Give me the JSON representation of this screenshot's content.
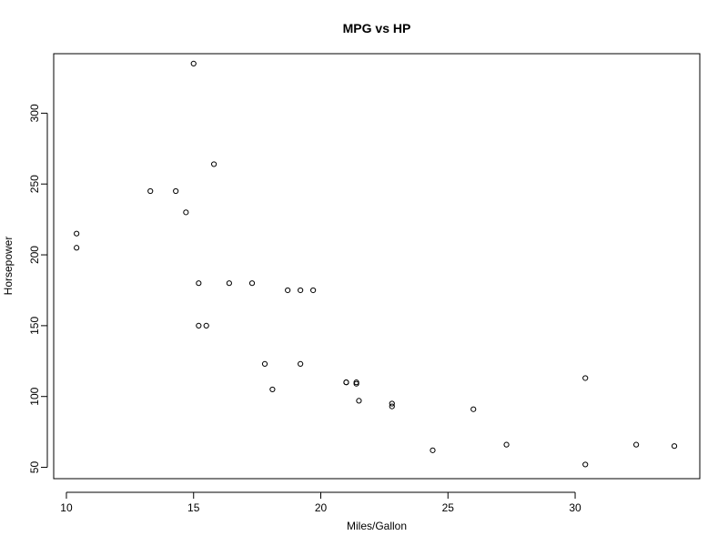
{
  "chart_data": {
    "type": "scatter",
    "title": "MPG vs HP",
    "xlabel": "Miles/Gallon",
    "ylabel": "Horsepower",
    "xlim": [
      9.5,
      34.9
    ],
    "ylim": [
      42,
      342
    ],
    "xticks": [
      10,
      15,
      20,
      25,
      30
    ],
    "yticks": [
      50,
      100,
      150,
      200,
      250,
      300
    ],
    "grid": false,
    "legend": "none",
    "marker": "open-circle",
    "points": [
      {
        "x": 21.0,
        "y": 110
      },
      {
        "x": 21.0,
        "y": 110
      },
      {
        "x": 22.8,
        "y": 93
      },
      {
        "x": 21.4,
        "y": 110
      },
      {
        "x": 18.7,
        "y": 175
      },
      {
        "x": 18.1,
        "y": 105
      },
      {
        "x": 14.3,
        "y": 245
      },
      {
        "x": 24.4,
        "y": 62
      },
      {
        "x": 22.8,
        "y": 95
      },
      {
        "x": 19.2,
        "y": 123
      },
      {
        "x": 17.8,
        "y": 123
      },
      {
        "x": 16.4,
        "y": 180
      },
      {
        "x": 17.3,
        "y": 180
      },
      {
        "x": 15.2,
        "y": 180
      },
      {
        "x": 10.4,
        "y": 205
      },
      {
        "x": 10.4,
        "y": 215
      },
      {
        "x": 14.7,
        "y": 230
      },
      {
        "x": 32.4,
        "y": 66
      },
      {
        "x": 30.4,
        "y": 52
      },
      {
        "x": 33.9,
        "y": 65
      },
      {
        "x": 21.5,
        "y": 97
      },
      {
        "x": 15.5,
        "y": 150
      },
      {
        "x": 15.2,
        "y": 150
      },
      {
        "x": 13.3,
        "y": 245
      },
      {
        "x": 19.2,
        "y": 175
      },
      {
        "x": 27.3,
        "y": 66
      },
      {
        "x": 26.0,
        "y": 91
      },
      {
        "x": 30.4,
        "y": 113
      },
      {
        "x": 15.8,
        "y": 264
      },
      {
        "x": 19.7,
        "y": 175
      },
      {
        "x": 15.0,
        "y": 335
      },
      {
        "x": 21.4,
        "y": 109
      }
    ]
  }
}
